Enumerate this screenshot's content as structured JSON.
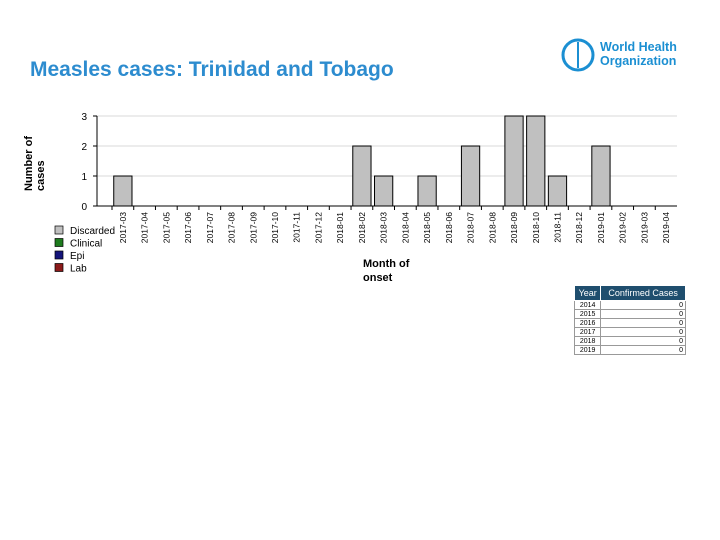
{
  "header": {
    "title": "Measles cases: Trinidad and Tobago",
    "logo": [
      "World Health",
      "Organization"
    ]
  },
  "chart_data": {
    "type": "bar",
    "stacked": true,
    "y_label": "Number of cases",
    "x_label": "Month of onset",
    "categories": [
      "2017-03",
      "2017-04",
      "2017-05",
      "2017-06",
      "2017-07",
      "2017-08",
      "2017-09",
      "2017-10",
      "2017-11",
      "2017-12",
      "2018-01",
      "2018-02",
      "2018-03",
      "2018-04",
      "2018-05",
      "2018-06",
      "2018-07",
      "2018-08",
      "2018-09",
      "2018-10",
      "2018-11",
      "2018-12",
      "2019-01",
      "2019-02",
      "2019-03",
      "2019-04"
    ],
    "series": [
      {
        "name": "Discarded",
        "color": "#c0c0c0",
        "values": [
          1,
          0,
          0,
          0,
          0,
          0,
          0,
          0,
          0,
          0,
          0,
          2,
          1,
          0,
          1,
          0,
          2,
          0,
          3,
          3,
          1,
          0,
          2,
          0,
          0,
          0
        ]
      },
      {
        "name": "Clinical",
        "color": "#1e7b1e",
        "values": [
          0,
          0,
          0,
          0,
          0,
          0,
          0,
          0,
          0,
          0,
          0,
          0,
          0,
          0,
          0,
          0,
          0,
          0,
          0,
          0,
          0,
          0,
          0,
          0,
          0,
          0
        ]
      },
      {
        "name": "Epi",
        "color": "#14147a",
        "values": [
          0,
          0,
          0,
          0,
          0,
          0,
          0,
          0,
          0,
          0,
          0,
          0,
          0,
          0,
          0,
          0,
          0,
          0,
          0,
          0,
          0,
          0,
          0,
          0,
          0,
          0
        ]
      },
      {
        "name": "Lab",
        "color": "#8b1a1a",
        "values": [
          0,
          0,
          0,
          0,
          0,
          0,
          0,
          0,
          0,
          0,
          0,
          0,
          0,
          0,
          0,
          0,
          0,
          0,
          0,
          0,
          0,
          0,
          0,
          0,
          0,
          0
        ]
      }
    ],
    "ylim": [
      0,
      3
    ],
    "yticks": [
      0,
      1,
      2,
      3
    ],
    "grid": true
  },
  "table": {
    "columns": [
      "Year",
      "Confirmed Cases"
    ],
    "rows": [
      [
        "2014",
        0
      ],
      [
        "2015",
        0
      ],
      [
        "2016",
        0
      ],
      [
        "2017",
        0
      ],
      [
        "2018",
        0
      ],
      [
        "2019",
        0
      ]
    ]
  }
}
